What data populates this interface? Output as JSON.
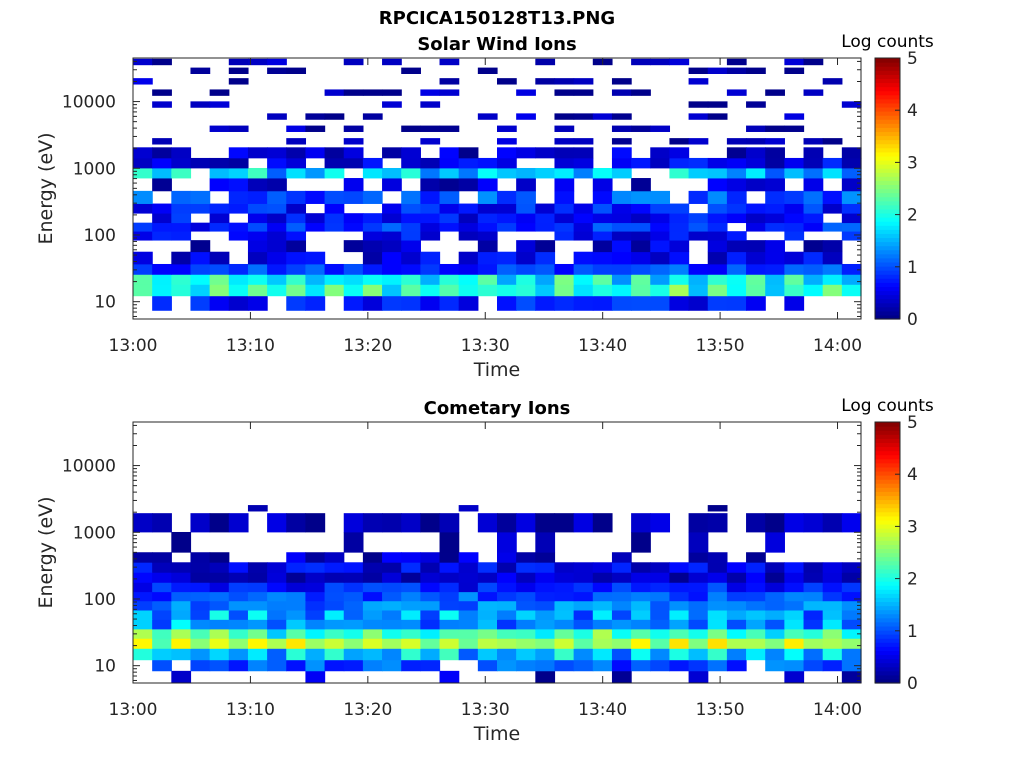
{
  "figure": {
    "title": "RPCICA150128T13.PNG"
  },
  "chart_data": [
    {
      "type": "heatmap",
      "title": "Solar Wind Ions",
      "xlabel": "Time",
      "ylabel": "Energy (eV)",
      "x_ticks": [
        "13:00",
        "13:10",
        "13:20",
        "13:30",
        "13:40",
        "13:50",
        "14:00"
      ],
      "x_range": [
        "13:00",
        "14:02"
      ],
      "y_scale": "log",
      "y_ticks": [
        10,
        100,
        1000,
        10000
      ],
      "y_tick_labels": [
        "10",
        "100",
        "1000",
        "10000"
      ],
      "y_range": [
        5.5,
        45000
      ],
      "colorbar": {
        "label": "Log counts",
        "range": [
          0,
          5
        ],
        "ticks": [
          "0",
          "1",
          "2",
          "3",
          "4",
          "5"
        ],
        "colormap": "jet"
      },
      "energy_bands": [
        {
          "energy_eV": 10,
          "mean_log_counts": 0.7,
          "coverage": 0.85
        },
        {
          "energy_eV": 15,
          "mean_log_counts": 2.1,
          "coverage": 1.0
        },
        {
          "energy_eV": 22,
          "mean_log_counts": 1.9,
          "coverage": 1.0
        },
        {
          "energy_eV": 30,
          "mean_log_counts": 0.9,
          "coverage": 1.0
        },
        {
          "energy_eV": 45,
          "mean_log_counts": 0.5,
          "coverage": 0.7
        },
        {
          "energy_eV": 70,
          "mean_log_counts": 0.4,
          "coverage": 0.4
        },
        {
          "energy_eV": 100,
          "mean_log_counts": 0.6,
          "coverage": 0.8
        },
        {
          "energy_eV": 130,
          "mean_log_counts": 0.8,
          "coverage": 0.95
        },
        {
          "energy_eV": 180,
          "mean_log_counts": 0.6,
          "coverage": 0.9
        },
        {
          "energy_eV": 250,
          "mean_log_counts": 0.7,
          "coverage": 0.85
        },
        {
          "energy_eV": 350,
          "mean_log_counts": 1.0,
          "coverage": 0.8
        },
        {
          "energy_eV": 600,
          "mean_log_counts": 0.4,
          "coverage": 0.5
        },
        {
          "energy_eV": 850,
          "mean_log_counts": 1.6,
          "coverage": 0.9
        },
        {
          "energy_eV": 1200,
          "mean_log_counts": 0.5,
          "coverage": 0.75
        },
        {
          "energy_eV": 1700,
          "mean_log_counts": 0.4,
          "coverage": 0.7
        },
        {
          "energy_eV": 2500,
          "mean_log_counts": 0.2,
          "coverage": 0.4
        },
        {
          "energy_eV": 4000,
          "mean_log_counts": 0.2,
          "coverage": 0.3
        },
        {
          "energy_eV": 6000,
          "mean_log_counts": 0.2,
          "coverage": 0.3
        },
        {
          "energy_eV": 9000,
          "mean_log_counts": 0.2,
          "coverage": 0.3
        },
        {
          "energy_eV": 14000,
          "mean_log_counts": 0.2,
          "coverage": 0.3
        },
        {
          "energy_eV": 20000,
          "mean_log_counts": 0.2,
          "coverage": 0.3
        },
        {
          "energy_eV": 30000,
          "mean_log_counts": 0.2,
          "coverage": 0.3
        },
        {
          "energy_eV": 40000,
          "mean_log_counts": 0.2,
          "coverage": 0.3
        }
      ]
    },
    {
      "type": "heatmap",
      "title": "Cometary Ions",
      "xlabel": "Time",
      "ylabel": "Energy (eV)",
      "x_ticks": [
        "13:00",
        "13:10",
        "13:20",
        "13:30",
        "13:40",
        "13:50",
        "14:00"
      ],
      "x_range": [
        "13:00",
        "14:02"
      ],
      "y_scale": "log",
      "y_ticks": [
        10,
        100,
        1000,
        10000
      ],
      "y_tick_labels": [
        "10",
        "100",
        "1000",
        "10000"
      ],
      "y_range": [
        5.5,
        45000
      ],
      "colorbar": {
        "label": "Log counts",
        "range": [
          0,
          5
        ],
        "ticks": [
          "0",
          "1",
          "2",
          "3",
          "4",
          "5"
        ],
        "colormap": "jet"
      },
      "energy_bands": [
        {
          "energy_eV": 7,
          "mean_log_counts": 0.3,
          "coverage": 0.3
        },
        {
          "energy_eV": 10,
          "mean_log_counts": 1.0,
          "coverage": 0.9
        },
        {
          "energy_eV": 15,
          "mean_log_counts": 1.6,
          "coverage": 1.0
        },
        {
          "energy_eV": 22,
          "mean_log_counts": 2.7,
          "coverage": 1.0
        },
        {
          "energy_eV": 30,
          "mean_log_counts": 2.2,
          "coverage": 1.0
        },
        {
          "energy_eV": 42,
          "mean_log_counts": 1.3,
          "coverage": 1.0
        },
        {
          "energy_eV": 58,
          "mean_log_counts": 1.4,
          "coverage": 1.0
        },
        {
          "energy_eV": 80,
          "mean_log_counts": 1.2,
          "coverage": 1.0
        },
        {
          "energy_eV": 110,
          "mean_log_counts": 1.0,
          "coverage": 1.0
        },
        {
          "energy_eV": 150,
          "mean_log_counts": 0.7,
          "coverage": 1.0
        },
        {
          "energy_eV": 210,
          "mean_log_counts": 0.4,
          "coverage": 1.0
        },
        {
          "energy_eV": 300,
          "mean_log_counts": 0.5,
          "coverage": 0.95
        },
        {
          "energy_eV": 420,
          "mean_log_counts": 0.3,
          "coverage": 0.6
        },
        {
          "energy_eV": 600,
          "mean_log_counts": 0.2,
          "coverage": 0.3
        },
        {
          "energy_eV": 1700,
          "mean_log_counts": 0.2,
          "coverage": 0.9
        },
        {
          "energy_eV": 2200,
          "mean_log_counts": 0.2,
          "coverage": 0.1
        }
      ]
    }
  ]
}
